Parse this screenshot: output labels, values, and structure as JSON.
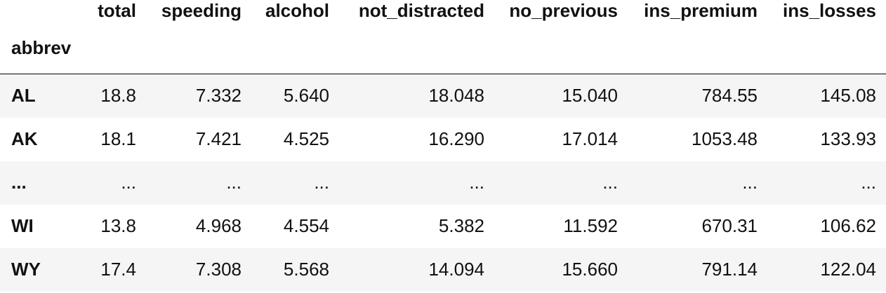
{
  "table": {
    "index_name": "abbrev",
    "columns": [
      "total",
      "speeding",
      "alcohol",
      "not_distracted",
      "no_previous",
      "ins_premium",
      "ins_losses"
    ],
    "rows": [
      {
        "index": "AL",
        "values": [
          "18.8",
          "7.332",
          "5.640",
          "18.048",
          "15.040",
          "784.55",
          "145.08"
        ]
      },
      {
        "index": "AK",
        "values": [
          "18.1",
          "7.421",
          "4.525",
          "16.290",
          "17.014",
          "1053.48",
          "133.93"
        ]
      },
      {
        "index": "...",
        "values": [
          "...",
          "...",
          "...",
          "...",
          "...",
          "...",
          "..."
        ]
      },
      {
        "index": "WI",
        "values": [
          "13.8",
          "4.968",
          "4.554",
          "5.382",
          "11.592",
          "670.31",
          "106.62"
        ]
      },
      {
        "index": "WY",
        "values": [
          "17.4",
          "7.308",
          "5.568",
          "14.094",
          "15.660",
          "791.14",
          "122.04"
        ]
      }
    ]
  }
}
